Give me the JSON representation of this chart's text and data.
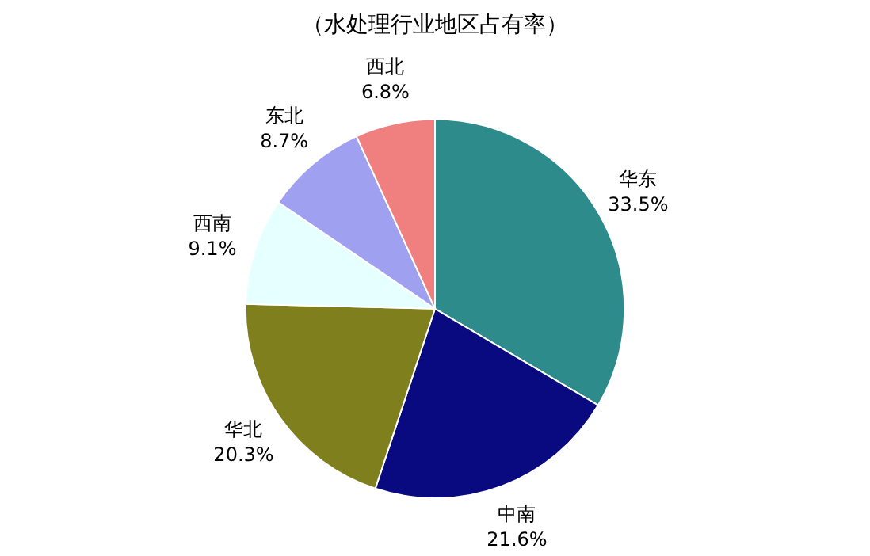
{
  "chart_data": {
    "type": "pie",
    "title": "（水处理行业地区占有率）",
    "categories": [
      "华东",
      "中南",
      "华北",
      "西南",
      "东北",
      "西北"
    ],
    "values": [
      33.5,
      21.6,
      20.3,
      9.1,
      8.7,
      6.8
    ],
    "value_labels": [
      "33.5%",
      "21.6%",
      "20.3%",
      "9.1%",
      "8.7%",
      "6.8%"
    ],
    "colors": [
      "#2e8b8b",
      "#0a0a80",
      "#7f7f1e",
      "#e6ffff",
      "#a0a0f0",
      "#f08080"
    ],
    "legend": false
  }
}
